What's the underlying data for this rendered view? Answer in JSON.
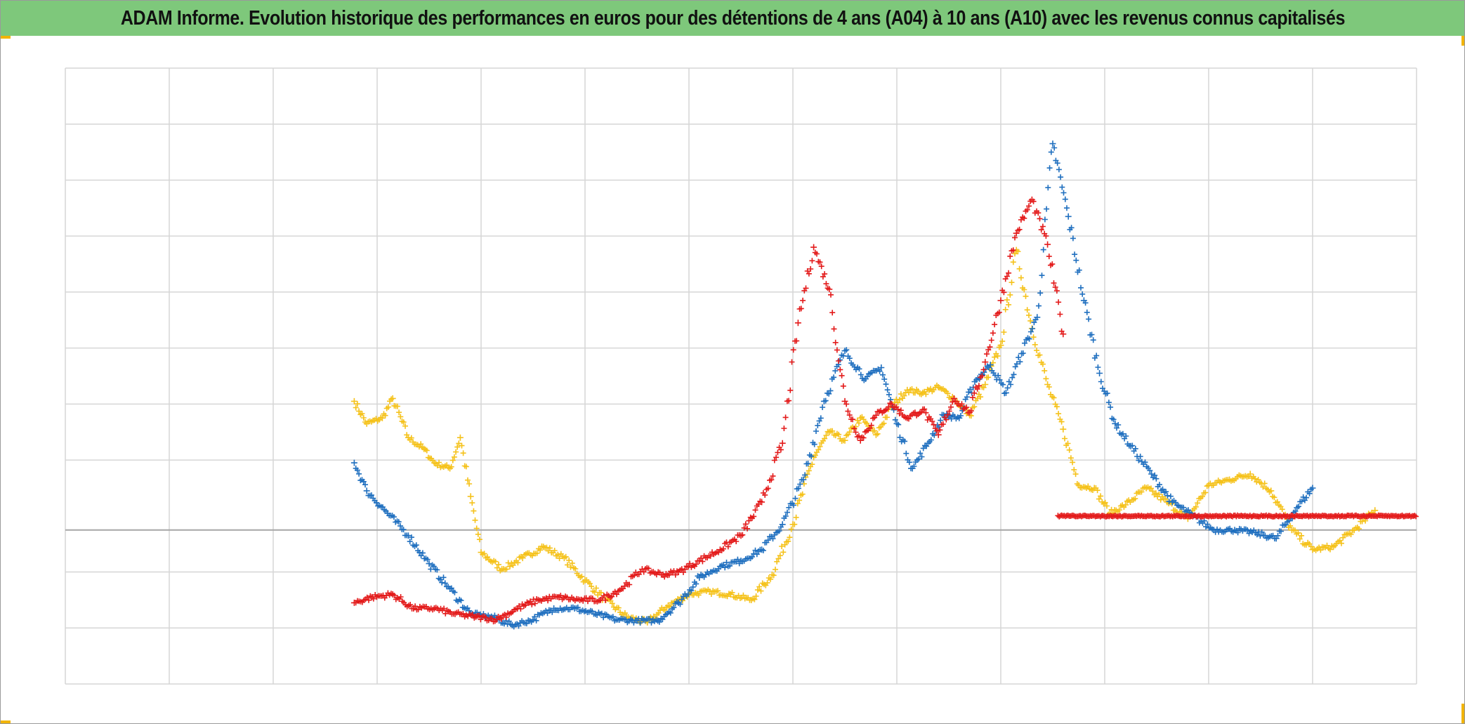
{
  "title": "ADAM Informe. Evolution historique des performances en euros pour des détentions de 4 ans (A04) à 10 ans (A10) avec les revenus connus capitalisés",
  "colors": {
    "title_bg": "#7ec87b",
    "grid": "#d6d6d6",
    "zero_line": "#a6a6a6",
    "series_red": "#e31a1a",
    "series_blue": "#1f6fbf",
    "series_yellow": "#f5c21b"
  },
  "chart_data": {
    "type": "scatter",
    "marker": "+",
    "title": "ADAM Informe. Evolution historique des performances en euros pour des détentions de 4 ans (A04) à 10 ans (A10) avec les revenus connus capitalisés",
    "xlabel": "",
    "ylabel": "",
    "xlim": [
      0,
      13
    ],
    "ylim": [
      -2.75,
      8.25
    ],
    "x_gridlines": 13,
    "y_gridlines": [
      -2.75,
      -1.75,
      -0.75,
      0,
      1.25,
      2.25,
      3.25,
      4.25,
      5.25,
      6.25,
      7.25,
      8.25
    ],
    "grid": true,
    "legend": "none",
    "tick_labels_visible": false,
    "series": [
      {
        "color": "#1f6fbf",
        "x": [
          2.78,
          2.9,
          3.1,
          3.3,
          3.5,
          3.7,
          3.9,
          4.1,
          4.3,
          4.5,
          4.7,
          4.9,
          5.1,
          5.3,
          5.5,
          5.7,
          5.9,
          6.1,
          6.3,
          6.5,
          6.7,
          6.9,
          7.1,
          7.3,
          7.5,
          7.7,
          7.85,
          8.0,
          8.15,
          8.3,
          8.45,
          8.6,
          8.75,
          8.9,
          9.05,
          9.2,
          9.35,
          9.5,
          9.65,
          9.8,
          9.95,
          10.1,
          10.25,
          10.45,
          10.65,
          10.85,
          11.05,
          11.25,
          11.45,
          11.65,
          11.85,
          12.0
        ],
        "y": [
          1.2,
          0.7,
          0.3,
          -0.1,
          -0.6,
          -1.05,
          -1.5,
          -1.55,
          -1.7,
          -1.6,
          -1.4,
          -1.4,
          -1.5,
          -1.6,
          -1.62,
          -1.62,
          -1.3,
          -0.85,
          -0.65,
          -0.55,
          -0.35,
          0.1,
          0.9,
          2.3,
          3.2,
          2.7,
          2.9,
          1.9,
          1.1,
          1.55,
          2.05,
          2.0,
          2.65,
          2.95,
          2.45,
          3.15,
          3.8,
          6.9,
          5.6,
          4.1,
          2.8,
          1.9,
          1.5,
          1.0,
          0.5,
          0.25,
          0.0,
          0.0,
          -0.05,
          -0.15,
          0.4,
          0.75
        ]
      },
      {
        "color": "#f5c21b",
        "x": [
          2.78,
          2.9,
          3.05,
          3.15,
          3.3,
          3.45,
          3.55,
          3.7,
          3.8,
          3.9,
          4.0,
          4.2,
          4.4,
          4.6,
          4.8,
          5.0,
          5.2,
          5.4,
          5.6,
          5.8,
          6.0,
          6.2,
          6.4,
          6.6,
          6.8,
          7.0,
          7.2,
          7.35,
          7.5,
          7.65,
          7.8,
          7.95,
          8.1,
          8.25,
          8.4,
          8.55,
          8.7,
          8.85,
          9.0,
          9.15,
          9.3,
          9.45,
          9.6,
          9.75,
          9.9,
          10.05,
          10.2,
          10.4,
          10.6,
          10.8,
          11.0,
          11.2,
          11.4,
          11.6,
          11.8,
          12.0,
          12.2,
          12.4,
          12.6
        ],
        "y": [
          2.3,
          1.9,
          2.0,
          2.35,
          1.65,
          1.45,
          1.2,
          1.1,
          1.65,
          0.6,
          -0.4,
          -0.7,
          -0.5,
          -0.3,
          -0.5,
          -0.9,
          -1.25,
          -1.55,
          -1.65,
          -1.35,
          -1.15,
          -1.1,
          -1.15,
          -1.25,
          -0.8,
          0.1,
          1.3,
          1.75,
          1.6,
          2.0,
          1.7,
          2.2,
          2.5,
          2.45,
          2.55,
          2.35,
          2.05,
          2.6,
          3.3,
          5.0,
          3.6,
          2.6,
          1.8,
          0.8,
          0.75,
          0.3,
          0.45,
          0.75,
          0.5,
          0.2,
          0.8,
          0.9,
          1.0,
          0.7,
          0.0,
          -0.35,
          -0.3,
          0.0,
          0.35
        ]
      },
      {
        "color": "#e31a1a",
        "x": [
          2.78,
          2.95,
          3.15,
          3.35,
          3.55,
          3.75,
          3.95,
          4.15,
          4.35,
          4.55,
          4.75,
          4.95,
          5.15,
          5.35,
          5.55,
          5.75,
          5.9,
          6.1,
          6.3,
          6.5,
          6.7,
          6.9,
          7.05,
          7.2,
          7.35,
          7.5,
          7.65,
          7.8,
          7.95,
          8.1,
          8.25,
          8.4,
          8.55,
          8.7,
          8.85,
          9.0,
          9.15,
          9.3,
          9.45,
          9.6
        ],
        "y": [
          -1.3,
          -1.2,
          -1.15,
          -1.4,
          -1.4,
          -1.5,
          -1.55,
          -1.6,
          -1.4,
          -1.25,
          -1.2,
          -1.25,
          -1.25,
          -1.05,
          -0.7,
          -0.8,
          -0.75,
          -0.55,
          -0.35,
          -0.1,
          0.5,
          1.55,
          3.7,
          5.05,
          4.3,
          2.3,
          1.6,
          2.05,
          2.25,
          2.0,
          2.15,
          1.7,
          2.35,
          2.1,
          3.0,
          4.1,
          5.3,
          5.9,
          5.1,
          3.5
        ]
      },
      {
        "color": "#e31a1a",
        "kind": "flat",
        "x_range": [
          9.55,
          13.0
        ],
        "y": 0.25
      }
    ]
  }
}
